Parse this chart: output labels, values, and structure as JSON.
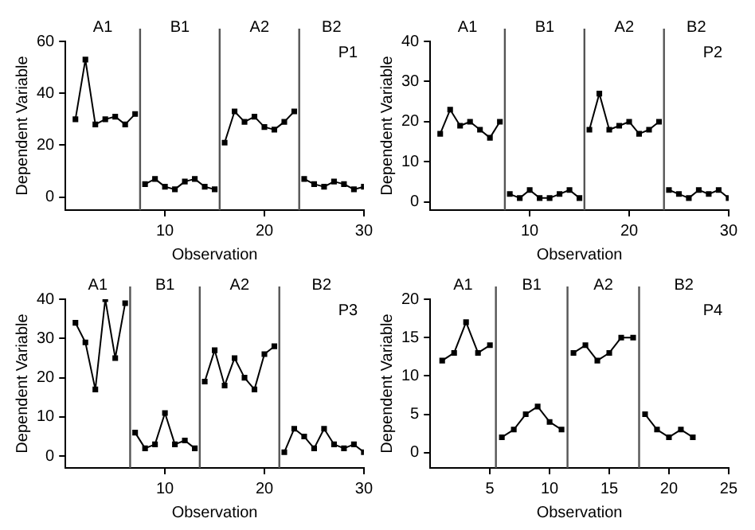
{
  "chart_data": [
    {
      "type": "line",
      "xlabel": "Observation",
      "ylabel": "Dependent Variable",
      "xlim": [
        0,
        30
      ],
      "ylim": [
        -5,
        60
      ],
      "xticks": [
        10,
        20,
        30
      ],
      "yticks": [
        0,
        20,
        40,
        60
      ],
      "grid": false,
      "legend": false,
      "marker": "square",
      "line_style": "solid",
      "series": [
        {
          "color": "#000000",
          "x": [
            1,
            2,
            3,
            4,
            5,
            6,
            7
          ],
          "values": [
            30,
            53,
            28,
            30,
            31,
            28,
            32
          ]
        },
        {
          "color": "#000000",
          "x": [
            8,
            9,
            10,
            11,
            12,
            13,
            14,
            15
          ],
          "values": [
            5,
            7,
            4,
            3,
            6,
            7,
            4,
            3
          ]
        },
        {
          "color": "#000000",
          "x": [
            16,
            17,
            18,
            19,
            20,
            21,
            22,
            23
          ],
          "values": [
            21,
            33,
            29,
            31,
            27,
            26,
            29,
            33
          ]
        },
        {
          "color": "#000000",
          "x": [
            24,
            25,
            26,
            27,
            28,
            29,
            30
          ],
          "values": [
            7,
            5,
            4,
            6,
            5,
            3,
            4
          ]
        }
      ],
      "ref_lines": [
        {
          "axis": "x",
          "value": 7.5,
          "color": "#555555"
        },
        {
          "axis": "x",
          "value": 15.5,
          "color": "#555555"
        },
        {
          "axis": "x",
          "value": 23.5,
          "color": "#555555"
        }
      ],
      "annotations": [
        "A1",
        "B1",
        "A2",
        "B2",
        "P1"
      ]
    },
    {
      "type": "line",
      "xlabel": "Observation",
      "ylabel": "Dependent Variable",
      "xlim": [
        0,
        30
      ],
      "ylim": [
        -2,
        40
      ],
      "xticks": [
        10,
        20,
        30
      ],
      "yticks": [
        0,
        10,
        20,
        30,
        40
      ],
      "grid": false,
      "legend": false,
      "marker": "square",
      "line_style": "solid",
      "series": [
        {
          "color": "#000000",
          "x": [
            1,
            2,
            3,
            4,
            5,
            6,
            7
          ],
          "values": [
            17,
            23,
            19,
            20,
            18,
            16,
            20
          ]
        },
        {
          "color": "#000000",
          "x": [
            8,
            9,
            10,
            11,
            12,
            13,
            14,
            15
          ],
          "values": [
            2,
            1,
            3,
            1,
            1,
            2,
            3,
            1
          ]
        },
        {
          "color": "#000000",
          "x": [
            16,
            17,
            18,
            19,
            20,
            21,
            22,
            23
          ],
          "values": [
            18,
            27,
            18,
            19,
            20,
            17,
            18,
            20
          ]
        },
        {
          "color": "#000000",
          "x": [
            24,
            25,
            26,
            27,
            28,
            29,
            30
          ],
          "values": [
            3,
            2,
            1,
            3,
            2,
            3,
            1
          ]
        }
      ],
      "ref_lines": [
        {
          "axis": "x",
          "value": 7.5,
          "color": "#555555"
        },
        {
          "axis": "x",
          "value": 15.5,
          "color": "#555555"
        },
        {
          "axis": "x",
          "value": 23.5,
          "color": "#555555"
        }
      ],
      "annotations": [
        "A1",
        "B1",
        "A2",
        "B2",
        "P2"
      ]
    },
    {
      "type": "line",
      "xlabel": "Observation",
      "ylabel": "Dependent Variable",
      "xlim": [
        0,
        30
      ],
      "ylim": [
        -3,
        40
      ],
      "xticks": [
        10,
        20,
        30
      ],
      "yticks": [
        0,
        10,
        20,
        30,
        40
      ],
      "grid": false,
      "legend": false,
      "marker": "square",
      "line_style": "solid",
      "series": [
        {
          "color": "#000000",
          "x": [
            1,
            2,
            3,
            4,
            5,
            6
          ],
          "values": [
            34,
            29,
            17,
            40,
            25,
            39
          ]
        },
        {
          "color": "#000000",
          "x": [
            7,
            8,
            9,
            10,
            11,
            12,
            13
          ],
          "values": [
            6,
            2,
            3,
            11,
            3,
            4,
            2
          ]
        },
        {
          "color": "#000000",
          "x": [
            14,
            15,
            16,
            17,
            18,
            19,
            20,
            21
          ],
          "values": [
            19,
            27,
            18,
            25,
            20,
            17,
            26,
            28
          ]
        },
        {
          "color": "#000000",
          "x": [
            22,
            23,
            24,
            25,
            26,
            27,
            28,
            29,
            30
          ],
          "values": [
            1,
            7,
            5,
            2,
            7,
            3,
            2,
            3,
            1
          ]
        }
      ],
      "ref_lines": [
        {
          "axis": "x",
          "value": 6.5,
          "color": "#555555"
        },
        {
          "axis": "x",
          "value": 13.5,
          "color": "#555555"
        },
        {
          "axis": "x",
          "value": 21.5,
          "color": "#555555"
        }
      ],
      "annotations": [
        "A1",
        "B1",
        "A2",
        "B2",
        "P3"
      ]
    },
    {
      "type": "line",
      "xlabel": "Observation",
      "ylabel": "Dependent Variable",
      "xlim": [
        0,
        25
      ],
      "ylim": [
        -2,
        20
      ],
      "xticks": [
        5,
        10,
        15,
        20,
        25
      ],
      "yticks": [
        0,
        5,
        10,
        15,
        20
      ],
      "grid": false,
      "legend": false,
      "marker": "square",
      "line_style": "solid",
      "series": [
        {
          "color": "#000000",
          "x": [
            1,
            2,
            3,
            4,
            5
          ],
          "values": [
            12,
            13,
            17,
            13,
            14
          ]
        },
        {
          "color": "#000000",
          "x": [
            6,
            7,
            8,
            9,
            10,
            11
          ],
          "values": [
            2,
            3,
            5,
            6,
            4,
            3
          ]
        },
        {
          "color": "#000000",
          "x": [
            12,
            13,
            14,
            15,
            16,
            17
          ],
          "values": [
            13,
            14,
            12,
            13,
            15,
            15
          ]
        },
        {
          "color": "#000000",
          "x": [
            18,
            19,
            20,
            21,
            22
          ],
          "values": [
            5,
            3,
            2,
            3,
            2
          ]
        }
      ],
      "ref_lines": [
        {
          "axis": "x",
          "value": 5.5,
          "color": "#555555"
        },
        {
          "axis": "x",
          "value": 11.5,
          "color": "#555555"
        },
        {
          "axis": "x",
          "value": 17.5,
          "color": "#555555"
        }
      ],
      "annotations": [
        "A1",
        "B1",
        "A2",
        "B2",
        "P4"
      ]
    }
  ]
}
